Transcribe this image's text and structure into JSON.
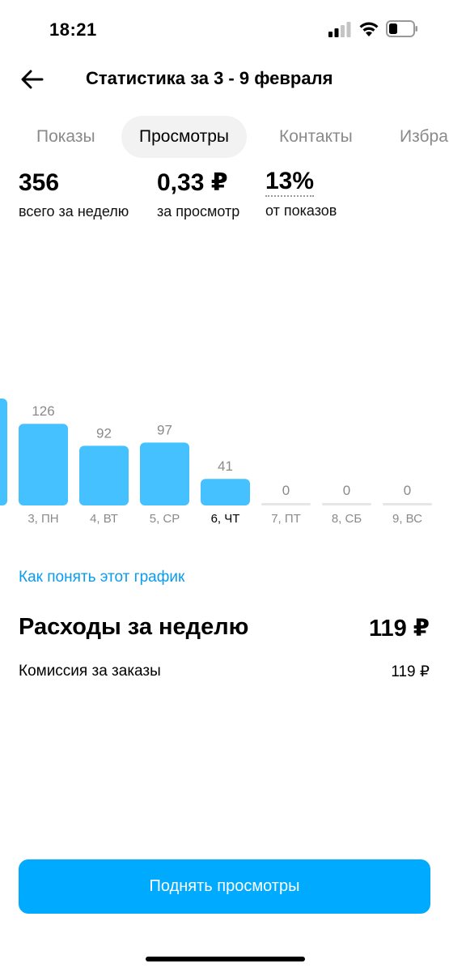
{
  "status_bar": {
    "time": "18:21"
  },
  "header": {
    "title": "Статистика за 3 - 9 февраля",
    "back_icon": "arrow-left-icon"
  },
  "tabs": [
    {
      "label": "Показы",
      "active": false
    },
    {
      "label": "Просмотры",
      "active": true
    },
    {
      "label": "Контакты",
      "active": false
    },
    {
      "label": "Избра",
      "active": false
    }
  ],
  "stats": [
    {
      "value": "356",
      "label": "всего за неделю"
    },
    {
      "value": "0,33 ₽",
      "label": "за просмотр"
    },
    {
      "value": "13%",
      "label": "от показов"
    }
  ],
  "chart_data": {
    "type": "bar",
    "categories": [
      "3, ПН",
      "4, ВТ",
      "5, СР",
      "6, ЧТ",
      "7, ПТ",
      "8, СБ",
      "9, ВС"
    ],
    "values": [
      126,
      92,
      97,
      41,
      0,
      0,
      0
    ],
    "highlighted_category": "6, ЧТ",
    "bar_color": "#45c1ff",
    "empty_bar_color": "#e6e6e6"
  },
  "help_link": "Как понять этот график",
  "expenses": {
    "title": "Расходы за неделю",
    "total": "119 ₽",
    "items": [
      {
        "label": "Комиссия за заказы",
        "value": "119 ₽"
      }
    ]
  },
  "cta": {
    "label": "Поднять просмотры",
    "color": "#00aaff"
  }
}
